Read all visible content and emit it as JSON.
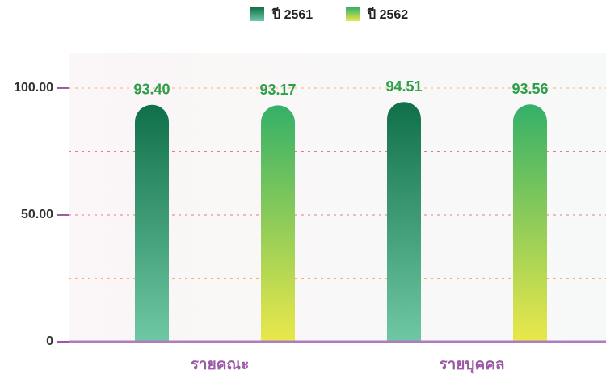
{
  "chart_data": {
    "type": "bar",
    "categories": [
      "รายคณะ",
      "รายบุคคล"
    ],
    "series": [
      {
        "name": "ปี 2561",
        "color": [
          "#10704a",
          "#6fc8a3"
        ],
        "values": [
          93.4,
          94.51
        ],
        "value_labels": [
          "93.40",
          "94.51"
        ]
      },
      {
        "name": "ปี 2562",
        "color": [
          "#34b068",
          "#ebe84a"
        ],
        "values": [
          93.17,
          93.56
        ],
        "value_labels": [
          "93.17",
          "93.56"
        ]
      }
    ],
    "ylim": [
      0,
      114
    ],
    "yticks": [
      0,
      {
        "value": 50,
        "label": "50.00"
      },
      {
        "value": 100,
        "label": "100.00"
      }
    ],
    "gridlines": [
      25,
      50,
      75,
      100
    ],
    "grid": true,
    "legend": "top"
  }
}
